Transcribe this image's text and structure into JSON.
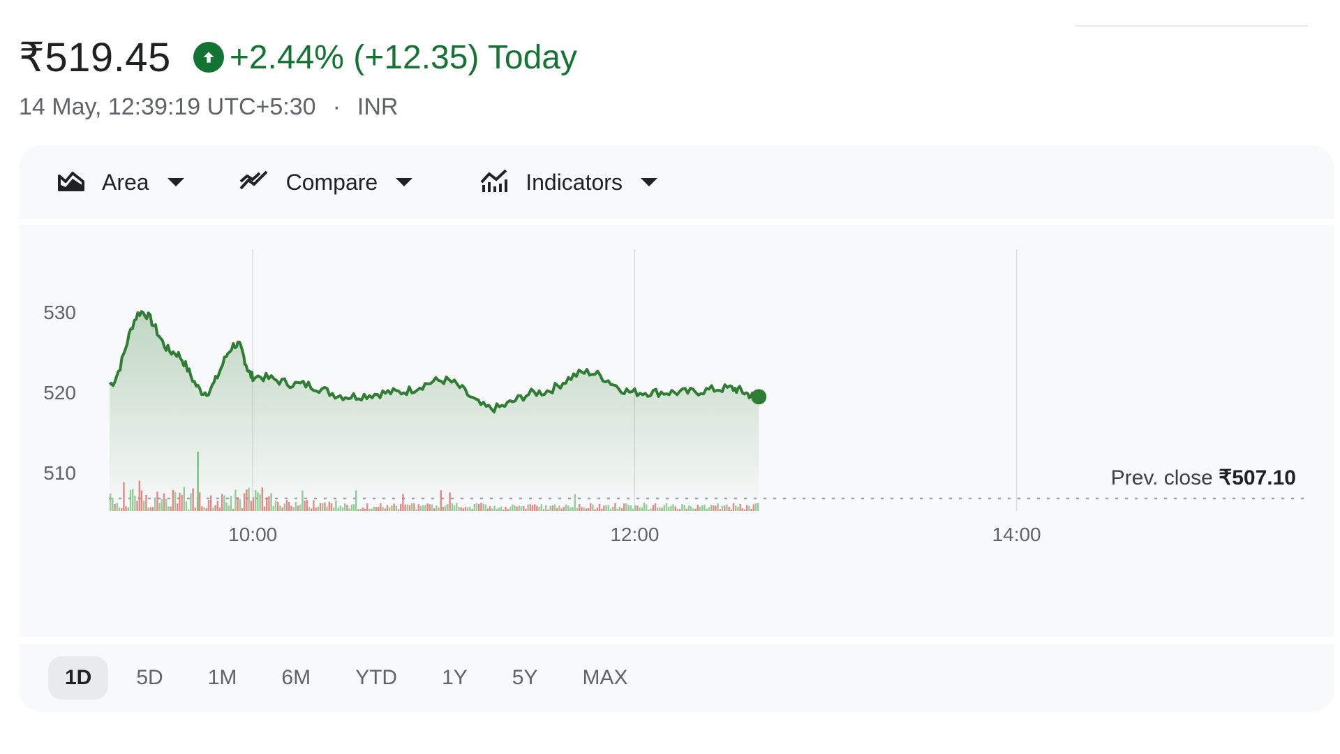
{
  "quote": {
    "price": "₹519.45",
    "change": "+2.44% (+12.35) Today",
    "timestamp": "14 May, 12:39:19 UTC+5:30",
    "separator": "·",
    "currency": "INR"
  },
  "toolbar": {
    "area_label": "Area",
    "compare_label": "Compare",
    "indicators_label": "Indicators"
  },
  "ranges": [
    "1D",
    "5D",
    "1M",
    "6M",
    "YTD",
    "1Y",
    "5Y",
    "MAX"
  ],
  "active_range": "1D",
  "colors": {
    "accent": "#137333",
    "line": "#2e7d32",
    "down_volume": "#e57373",
    "up_volume": "#81c784"
  },
  "chart_data": {
    "type": "area",
    "y_ticks": [
      530,
      520,
      510
    ],
    "x_ticks": [
      "10:00",
      "12:00",
      "14:00"
    ],
    "prev_close_label": "Prev. close",
    "prev_close_value": "₹507.10",
    "prev_close": 507.1,
    "x": [
      "09:15",
      "09:25",
      "09:35",
      "09:45",
      "09:55",
      "10:00",
      "10:15",
      "10:30",
      "10:45",
      "11:00",
      "11:15",
      "11:30",
      "11:45",
      "12:00",
      "12:15",
      "12:30",
      "12:39"
    ],
    "series": [
      {
        "values": [
          521.0,
          530.0,
          525.0,
          520.0,
          526.0,
          522.0,
          521.0,
          519.5,
          520.0,
          521.5,
          518.0,
          520.0,
          522.5,
          520.0,
          520.0,
          520.5,
          519.45
        ]
      }
    ]
  }
}
